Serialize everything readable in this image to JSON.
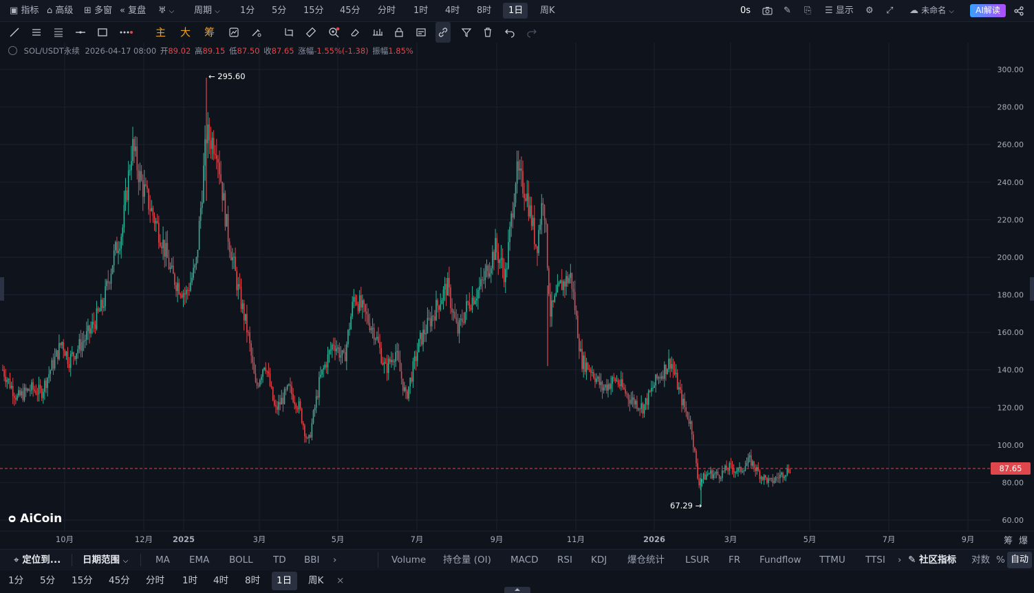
{
  "top_toolbar": {
    "indicators": "指标",
    "advanced": "高级",
    "multi_window": "多窗",
    "replay": "复盘",
    "period": "周期",
    "intervals": [
      "1分",
      "5分",
      "15分",
      "45分",
      "分时",
      "1时",
      "4时",
      "8时",
      "1日",
      "周K"
    ],
    "active_interval": "1日",
    "countdown": "0s",
    "display": "显示",
    "layout_name": "未命名",
    "ai_button": "AI解读"
  },
  "drawing_toolbar": {
    "main_label": "主",
    "big_label": "大",
    "chip_label": "筹"
  },
  "info_line": {
    "symbol": "SOL/USDT永续",
    "datetime": "2026-04-17 08:00",
    "open_label": "开",
    "open": "89.02",
    "high_label": "高",
    "high": "89.15",
    "low_label": "低",
    "low": "87.50",
    "close_label": "收",
    "close": "87.65",
    "change_label": "涨幅",
    "change": "-1.55%(-1.38)",
    "amplitude_label": "振幅",
    "amplitude": "1.85%"
  },
  "chart_data": {
    "type": "candlestick",
    "symbol": "SOL/USDT永续",
    "interval": "1日",
    "y_ticks": [
      300,
      280,
      260,
      240,
      220,
      200,
      180,
      160,
      140,
      120,
      100,
      80,
      60
    ],
    "y_tick_labels": [
      "300.00",
      "280.00",
      "260.00",
      "240.00",
      "220.00",
      "200.00",
      "180.00",
      "160.00",
      "140.00",
      "120.00",
      "100.00",
      "80.00",
      "60.00"
    ],
    "ylim": [
      53,
      305
    ],
    "x_tick_labels": [
      "10月",
      "12月",
      "2025",
      "3月",
      "5月",
      "7月",
      "9月",
      "11月",
      "2026",
      "3月",
      "5月",
      "7月",
      "9月"
    ],
    "bold_x_ticks": [
      "2025",
      "2026"
    ],
    "series_close_approx": [
      {
        "date": "2024-09",
        "close": 135
      },
      {
        "date": "2024-10",
        "close": 150
      },
      {
        "date": "2024-11",
        "close": 245
      },
      {
        "date": "2024-12",
        "close": 190
      },
      {
        "date": "2025-01",
        "close": 240
      },
      {
        "date": "2025-02",
        "close": 170
      },
      {
        "date": "2025-03",
        "close": 125
      },
      {
        "date": "2025-04",
        "close": 130
      },
      {
        "date": "2025-05",
        "close": 170
      },
      {
        "date": "2025-06",
        "close": 145
      },
      {
        "date": "2025-07",
        "close": 175
      },
      {
        "date": "2025-08",
        "close": 200
      },
      {
        "date": "2025-09",
        "close": 235
      },
      {
        "date": "2025-10",
        "close": 185
      },
      {
        "date": "2025-11",
        "close": 135
      },
      {
        "date": "2025-12",
        "close": 125
      },
      {
        "date": "2026-01",
        "close": 130
      },
      {
        "date": "2026-02",
        "close": 85
      },
      {
        "date": "2026-03",
        "close": 88
      },
      {
        "date": "2026-04",
        "close": 87.65
      }
    ],
    "high_marker": {
      "value": "295.60",
      "text": "← 295.60"
    },
    "low_marker": {
      "value": "67.29",
      "text": "67.29 →"
    },
    "last_price": "87.65",
    "up_color": "#2bb49a",
    "down_color": "#e0474d",
    "right_axis_extra": [
      "筹",
      "爆"
    ],
    "watermark": "AiCoin"
  },
  "bottom_indicators": {
    "locate": "定位到...",
    "date_range": "日期范围",
    "main_indicators": [
      "MA",
      "EMA",
      "BOLL",
      "TD",
      "BBI"
    ],
    "sub_indicators": [
      "Volume",
      "持仓量 (OI)",
      "MACD",
      "RSI",
      "KDJ",
      "爆仓统计",
      "LSUR",
      "FR",
      "Fundflow",
      "TTMU",
      "TTSI"
    ],
    "community": "社区指标",
    "log": "对数",
    "percent": "%",
    "auto": "自动"
  },
  "bottom_intervals": {
    "items": [
      "1分",
      "5分",
      "15分",
      "45分",
      "分时",
      "1时",
      "4时",
      "8时",
      "1日",
      "周K"
    ],
    "active": "1日",
    "close": "×"
  }
}
